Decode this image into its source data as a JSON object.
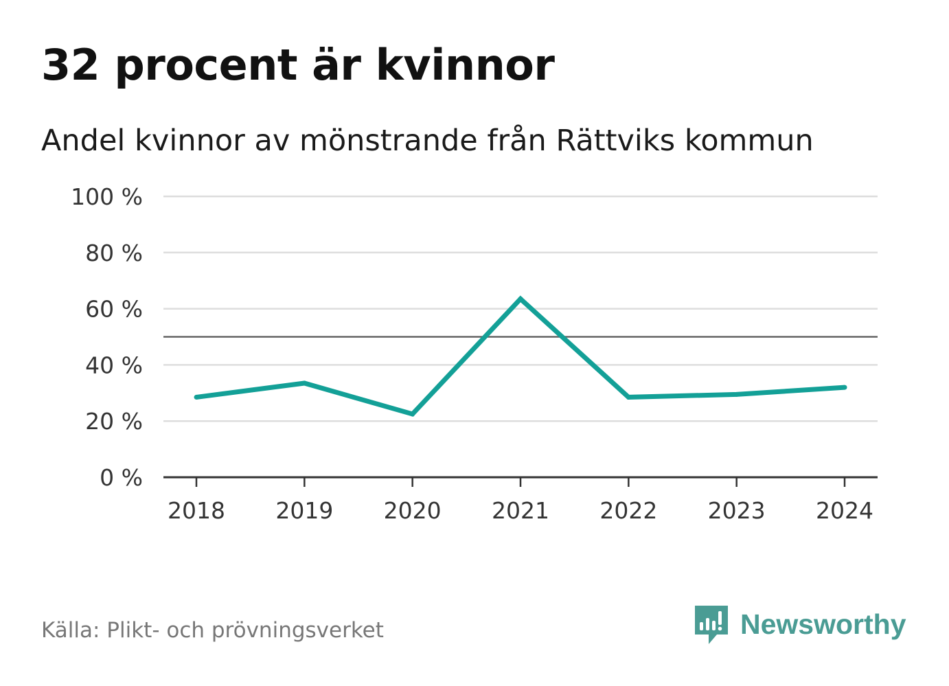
{
  "header": {
    "title": "32 procent är kvinnor",
    "subtitle": "Andel kvinnor av mönstrande från Rättviks kommun"
  },
  "footer": {
    "source": "Källa: Plikt- och prövningsverket",
    "brand": "Newsworthy"
  },
  "colors": {
    "line": "#13a097",
    "grid": "#dddddd",
    "reference": "#666666",
    "axis": "#333333",
    "brand": "#4a9c94"
  },
  "chart_data": {
    "type": "line",
    "title": "32 procent är kvinnor",
    "subtitle": "Andel kvinnor av mönstrande från Rättviks kommun",
    "xlabel": "",
    "ylabel": "",
    "x": [
      "2018",
      "2019",
      "2020",
      "2021",
      "2022",
      "2023",
      "2024"
    ],
    "series": [
      {
        "name": "Andel kvinnor",
        "values": [
          28.5,
          33.5,
          22.5,
          63.5,
          28.5,
          29.5,
          32
        ]
      }
    ],
    "ylim": [
      0,
      100
    ],
    "yticks": [
      0,
      20,
      40,
      60,
      80,
      100
    ],
    "ytick_labels": [
      "0 %",
      "20 %",
      "40 %",
      "60 %",
      "80 %",
      "100 %"
    ],
    "reference_line": 50,
    "grid": true,
    "legend": "none"
  }
}
